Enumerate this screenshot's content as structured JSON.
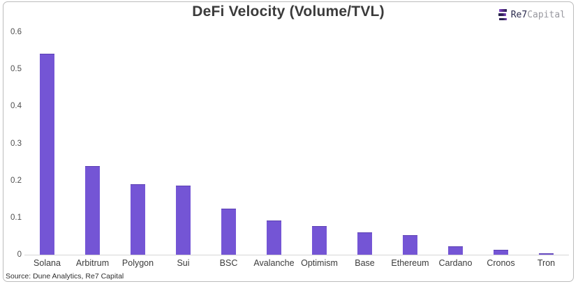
{
  "title": "DeFi Velocity (Volume/TVL)",
  "logo": {
    "icon": "re7-bars-icon",
    "text_primary": "Re7",
    "text_secondary": "Capital"
  },
  "source": "Source: Dune Analytics, Re7 Capital",
  "colors": {
    "bar": "#7455d5",
    "axis_line": "#d6d6d6",
    "title_text": "#3b3b3b",
    "logo_navy": "#2a2a4d",
    "logo_gray": "#98989f",
    "logo_purple": "#8a4fd0"
  },
  "chart_data": {
    "type": "bar",
    "title": "DeFi Velocity (Volume/TVL)",
    "xlabel": "",
    "ylabel": "",
    "categories": [
      "Solana",
      "Arbitrum",
      "Polygon",
      "Sui",
      "BSC",
      "Avalanche",
      "Optimism",
      "Base",
      "Ethereum",
      "Cardano",
      "Cronos",
      "Tron"
    ],
    "values": [
      0.542,
      0.239,
      0.19,
      0.187,
      0.125,
      0.093,
      0.078,
      0.06,
      0.053,
      0.022,
      0.014,
      0.003
    ],
    "ylim": [
      0,
      0.6
    ],
    "yticks": [
      0,
      0.1,
      0.2,
      0.3,
      0.4,
      0.5,
      0.6
    ],
    "ytick_labels": [
      "0",
      "0.1",
      "0.2",
      "0.3",
      "0.4",
      "0.5",
      "0.6"
    ],
    "grid": false,
    "legend": false,
    "bar_color": "#7455d5"
  }
}
